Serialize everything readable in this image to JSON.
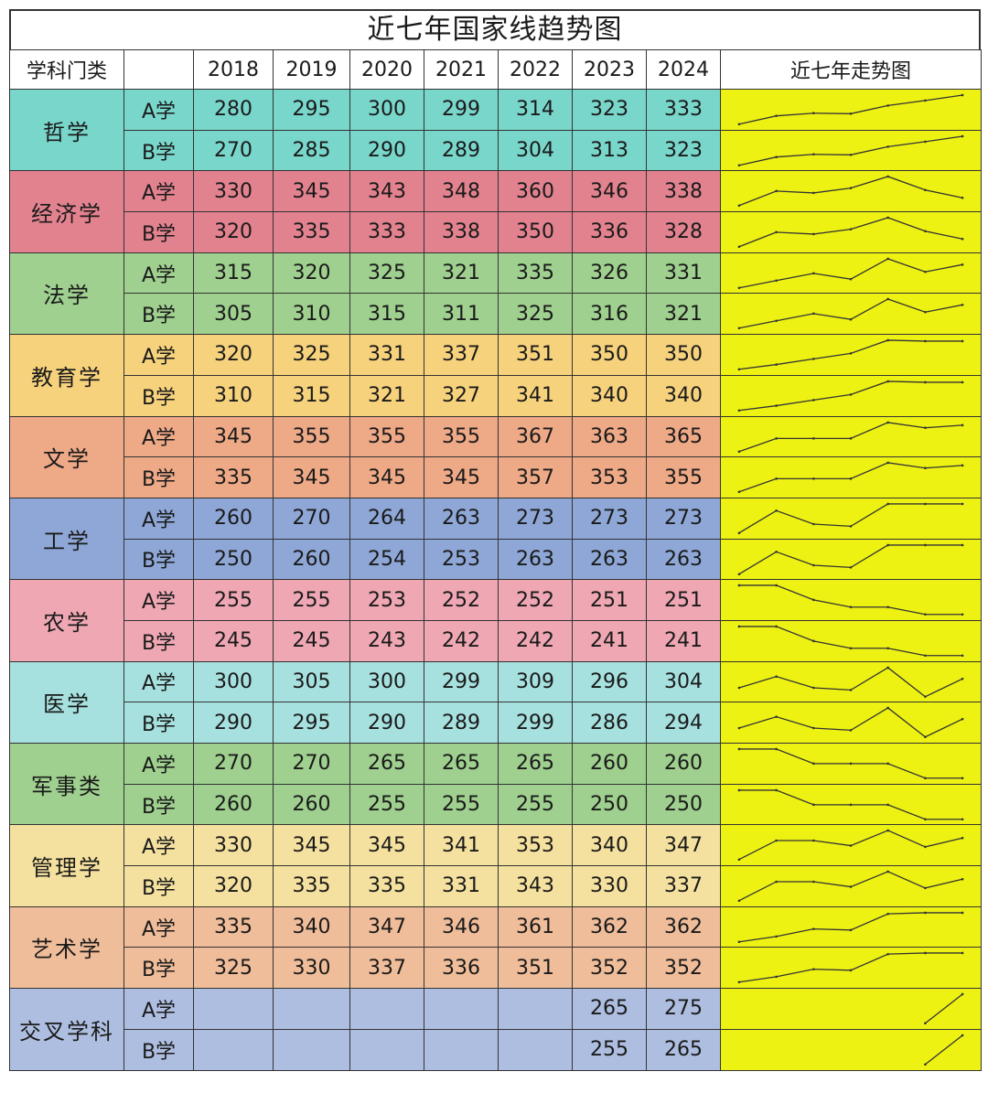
{
  "title": "近七年国家线趋势图",
  "headers": {
    "category": "学科门类",
    "group": "",
    "years": [
      "2018",
      "2019",
      "2020",
      "2021",
      "2022",
      "2023",
      "2024"
    ],
    "trend": "近七年走势图"
  },
  "colors": {
    "sparkline_bg": "#eef213",
    "sparkline_stroke": "#333333",
    "categories": [
      "#79d6cb",
      "#e2828f",
      "#9fd08f",
      "#f7d27d",
      "#eea987",
      "#8ea7d6",
      "#eea7b3",
      "#a7e1df",
      "#9fd08f",
      "#f5e19f",
      "#f0bd9a",
      "#aebee0"
    ]
  },
  "chart_data": {
    "type": "table",
    "title": "近七年国家线趋势图",
    "x": [
      "2018",
      "2019",
      "2020",
      "2021",
      "2022",
      "2023",
      "2024"
    ],
    "categories": [
      {
        "name": "哲学",
        "rows": [
          {
            "group": "A学",
            "values": [
              280,
              295,
              300,
              299,
              314,
              323,
              333
            ]
          },
          {
            "group": "B学",
            "values": [
              270,
              285,
              290,
              289,
              304,
              313,
              323
            ]
          }
        ]
      },
      {
        "name": "经济学",
        "rows": [
          {
            "group": "A学",
            "values": [
              330,
              345,
              343,
              348,
              360,
              346,
              338
            ]
          },
          {
            "group": "B学",
            "values": [
              320,
              335,
              333,
              338,
              350,
              336,
              328
            ]
          }
        ]
      },
      {
        "name": "法学",
        "rows": [
          {
            "group": "A学",
            "values": [
              315,
              320,
              325,
              321,
              335,
              326,
              331
            ]
          },
          {
            "group": "B学",
            "values": [
              305,
              310,
              315,
              311,
              325,
              316,
              321
            ]
          }
        ]
      },
      {
        "name": "教育学",
        "rows": [
          {
            "group": "A学",
            "values": [
              320,
              325,
              331,
              337,
              351,
              350,
              350
            ]
          },
          {
            "group": "B学",
            "values": [
              310,
              315,
              321,
              327,
              341,
              340,
              340
            ]
          }
        ]
      },
      {
        "name": "文学",
        "rows": [
          {
            "group": "A学",
            "values": [
              345,
              355,
              355,
              355,
              367,
              363,
              365
            ]
          },
          {
            "group": "B学",
            "values": [
              335,
              345,
              345,
              345,
              357,
              353,
              355
            ]
          }
        ]
      },
      {
        "name": "工学",
        "rows": [
          {
            "group": "A学",
            "values": [
              260,
              270,
              264,
              263,
              273,
              273,
              273
            ]
          },
          {
            "group": "B学",
            "values": [
              250,
              260,
              254,
              253,
              263,
              263,
              263
            ]
          }
        ]
      },
      {
        "name": "农学",
        "rows": [
          {
            "group": "A学",
            "values": [
              255,
              255,
              253,
              252,
              252,
              251,
              251
            ]
          },
          {
            "group": "B学",
            "values": [
              245,
              245,
              243,
              242,
              242,
              241,
              241
            ]
          }
        ]
      },
      {
        "name": "医学",
        "rows": [
          {
            "group": "A学",
            "values": [
              300,
              305,
              300,
              299,
              309,
              296,
              304
            ]
          },
          {
            "group": "B学",
            "values": [
              290,
              295,
              290,
              289,
              299,
              286,
              294
            ]
          }
        ]
      },
      {
        "name": "军事类",
        "rows": [
          {
            "group": "A学",
            "values": [
              270,
              270,
              265,
              265,
              265,
              260,
              260
            ]
          },
          {
            "group": "B学",
            "values": [
              260,
              260,
              255,
              255,
              255,
              250,
              250
            ]
          }
        ]
      },
      {
        "name": "管理学",
        "rows": [
          {
            "group": "A学",
            "values": [
              330,
              345,
              345,
              341,
              353,
              340,
              347
            ]
          },
          {
            "group": "B学",
            "values": [
              320,
              335,
              335,
              331,
              343,
              330,
              337
            ]
          }
        ]
      },
      {
        "name": "艺术学",
        "rows": [
          {
            "group": "A学",
            "values": [
              335,
              340,
              347,
              346,
              361,
              362,
              362
            ]
          },
          {
            "group": "B学",
            "values": [
              325,
              330,
              337,
              336,
              351,
              352,
              352
            ]
          }
        ]
      },
      {
        "name": "交叉学科",
        "rows": [
          {
            "group": "A学",
            "values": [
              null,
              null,
              null,
              null,
              null,
              265,
              275
            ]
          },
          {
            "group": "B学",
            "values": [
              null,
              null,
              null,
              null,
              null,
              255,
              265
            ]
          }
        ]
      }
    ]
  }
}
